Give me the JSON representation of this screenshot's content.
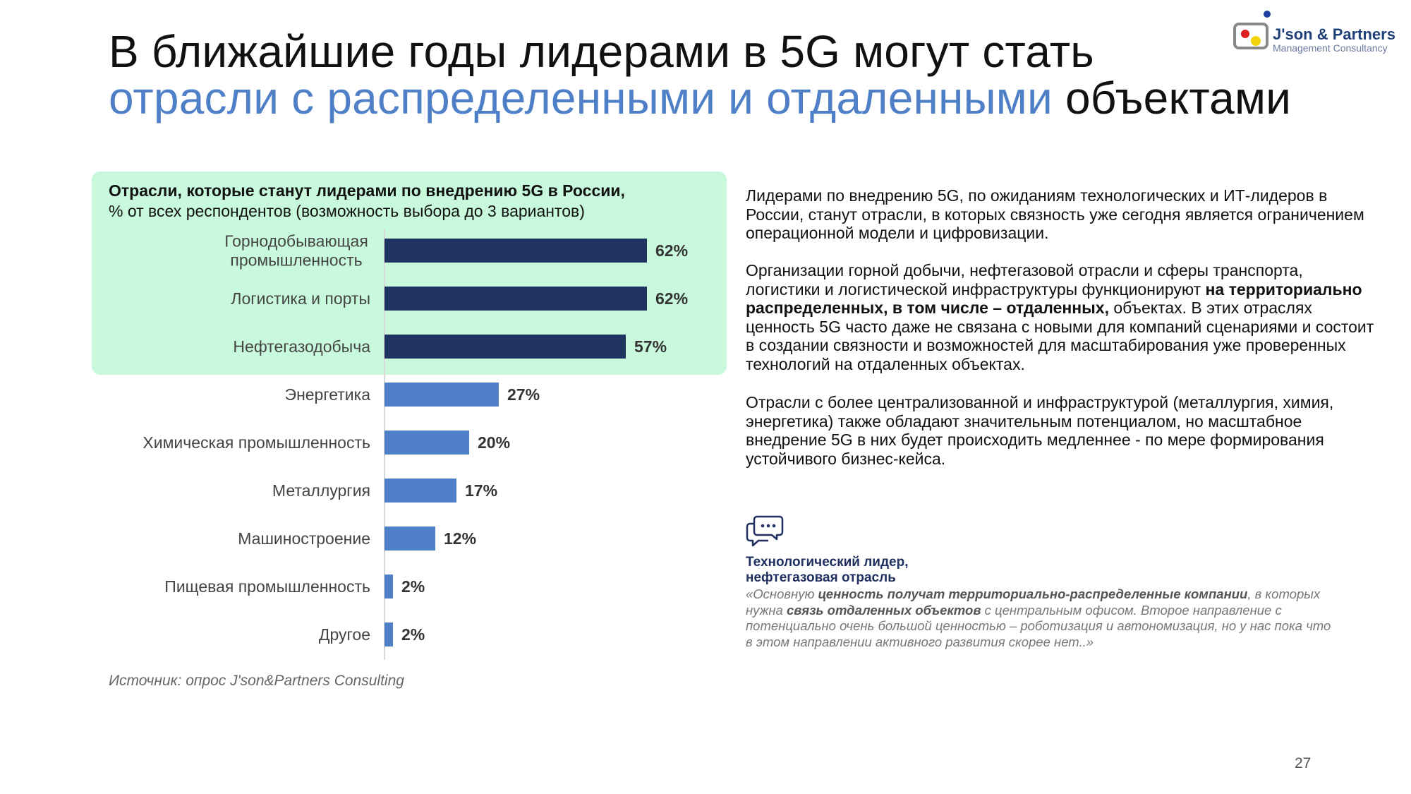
{
  "title": {
    "line1": "В ближайшие годы лидерами в 5G могут стать",
    "line2_accent": "отрасли с распределенными и отдаленными",
    "line2_rest": " объектами"
  },
  "logo": {
    "name": "J'son & Partners",
    "subtitle": "Management Consultancy"
  },
  "chart_header": {
    "title": "Отрасли, которые станут лидерами по внедрению 5G в России,",
    "subtitle": "% от всех респондентов (возможность выбора до 3 вариантов)"
  },
  "colors": {
    "dark_bar": "#1f3461",
    "light_bar": "#4f80c7",
    "highlight": "#c9f9dd",
    "accent_text": "#4f80c7"
  },
  "chart_data": {
    "type": "bar",
    "orientation": "horizontal",
    "categories": [
      "Горнодобывающая промышленность",
      "Логистика и порты",
      "Нефтегазодобыча",
      "Энергетика",
      "Химическая промышленность",
      "Металлургия",
      "Машиностроение",
      "Пищевая промышленность",
      "Другое"
    ],
    "category_lines": [
      [
        "Горнодобывающая",
        "промышленность"
      ],
      [
        "Логистика и порты"
      ],
      [
        "Нефтегазодобыча"
      ],
      [
        "Энергетика"
      ],
      [
        "Химическая промышленность"
      ],
      [
        "Металлургия"
      ],
      [
        "Машиностроение"
      ],
      [
        "Пищевая промышленность"
      ],
      [
        "Другое"
      ]
    ],
    "values": [
      62,
      62,
      57,
      27,
      20,
      17,
      12,
      2,
      2
    ],
    "value_labels": [
      "62%",
      "62%",
      "57%",
      "27%",
      "20%",
      "17%",
      "12%",
      "2%",
      "2%"
    ],
    "highlighted_top": 3,
    "unit": "%",
    "xlim": [
      0,
      100
    ]
  },
  "source": "Источник: опрос J'son&Partners Consulting",
  "right_text": {
    "p1_bold": "Лидерами по внедрению 5G, по ожиданиям технологических и ИТ-лидеров в России, станут отрасли, в которых связность уже сегодня является ограничением операционной модели и цифровизации.",
    "p2_start": "Организации горной добычи, нефтегазовой отрасли и сферы транспорта, логистики и логистической инфраструктуры функционируют ",
    "p2_bold": "на территориально распределенных, в том числе – отдаленных,",
    "p2_end": " объектах. В этих отраслях ценность 5G часто даже не связана с новыми для компаний сценариями и состоит в создании связности и возможностей для масштабирования уже проверенных технологий на отдаленных объектах.",
    "p3": "Отрасли с более централизованной и инфраструктурой (металлургия, химия, энергетика) также обладают значительным потенциалом, но масштабное внедрение 5G в них будет происходить медленнее - по мере формирования устойчивого бизнес-кейса."
  },
  "quote": {
    "author_line1": "Технологический лидер,",
    "author_line2": "нефтегазовая отрасль",
    "t1": "«Основную ",
    "b1": "ценность получат территориально-распределенные компании",
    "t2": ", в которых нужна ",
    "b2": "связь отдаленных объектов",
    "t3": " с центральным офисом.  Второе направление с потенциально очень большой ценностью  – роботизация и автономизация, но у нас пока что в этом направлении активного развития скорее нет..»"
  },
  "page_number": "27"
}
